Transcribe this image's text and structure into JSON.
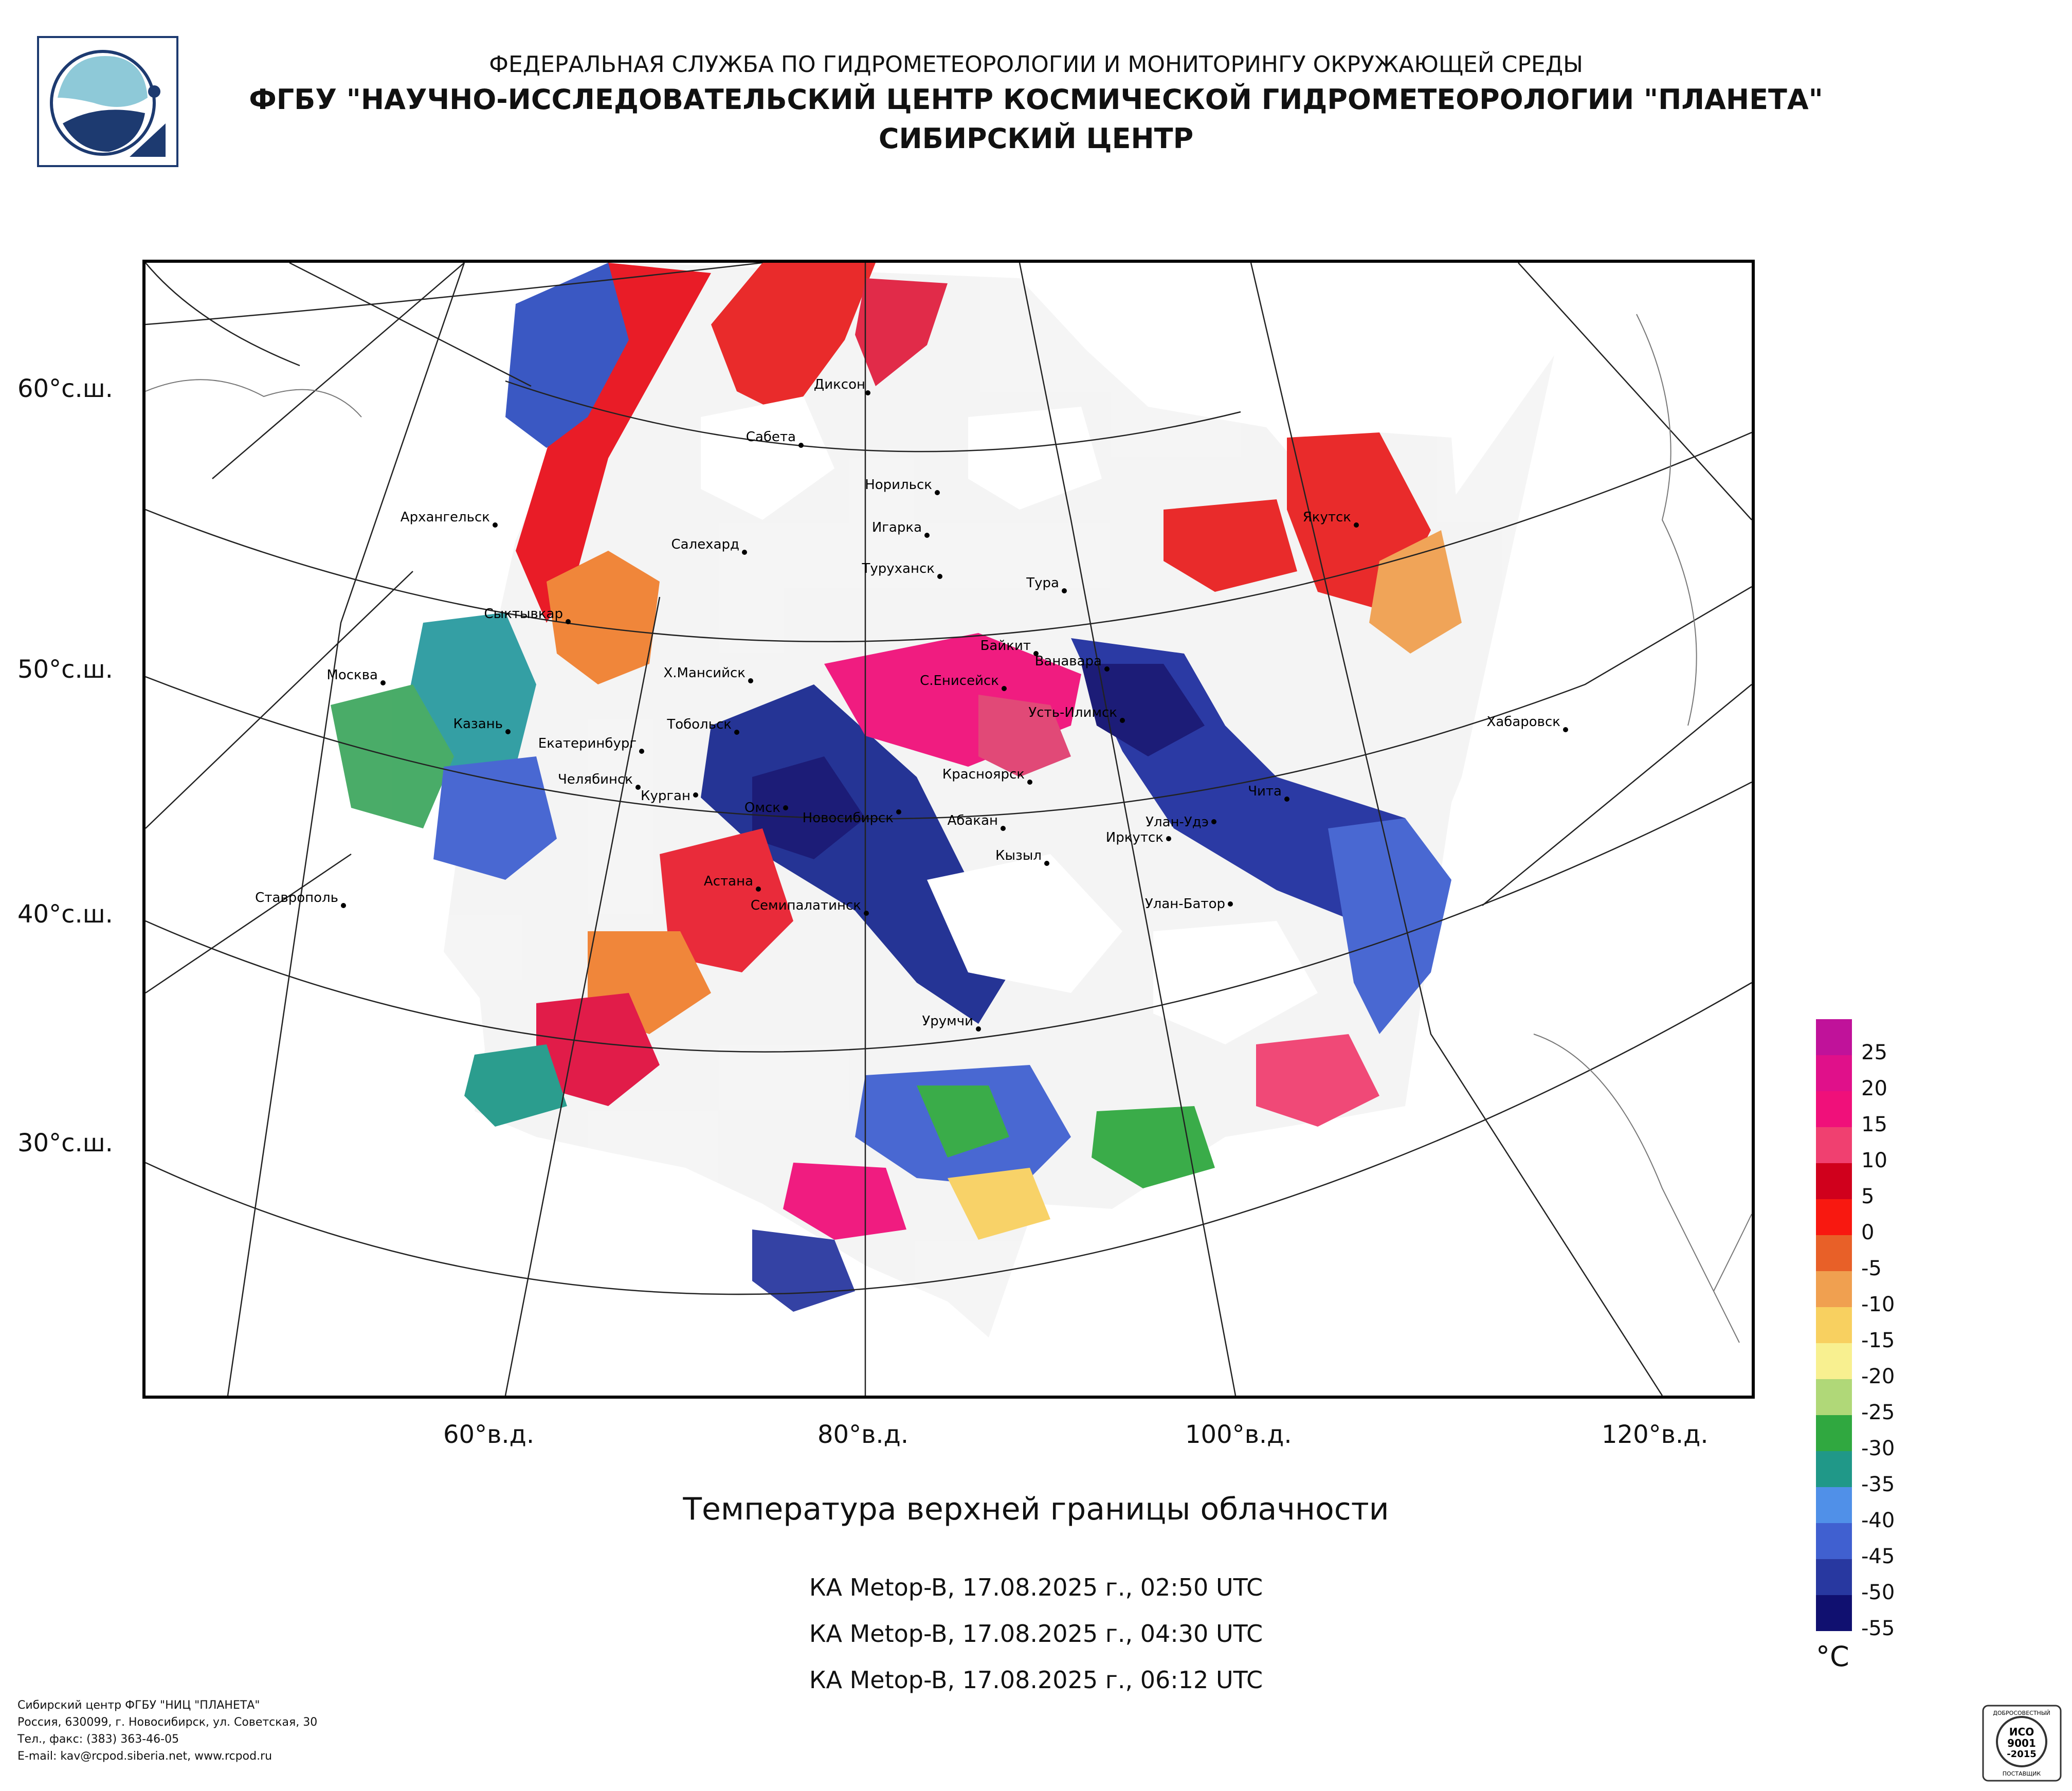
{
  "header": {
    "line1": "ФЕДЕРАЛЬНАЯ СЛУЖБА ПО ГИДРОМЕТЕОРОЛОГИИ И МОНИТОРИНГУ ОКРУЖАЮЩЕЙ СРЕДЫ",
    "line2": "ФГБУ \"НАУЧНО-ИССЛЕДОВАТЕЛЬСКИЙ ЦЕНТР КОСМИЧЕСКОЙ ГИДРОМЕТЕОРОЛОГИИ \"ПЛАНЕТА\"",
    "line3": "СИБИРСКИЙ ЦЕНТР"
  },
  "map": {
    "lat_labels": [
      "60°с.ш.",
      "50°с.ш.",
      "40°с.ш.",
      "30°с.ш."
    ],
    "lon_labels": [
      "60°в.д.",
      "80°в.д.",
      "100°в.д.",
      "120°в.д."
    ],
    "cities": [
      "Диксон",
      "Сабета",
      "Норильск",
      "Игарка",
      "Архангельск",
      "Салехард",
      "Туруханск",
      "Тура",
      "Якутск",
      "Сыктывкар",
      "Байкит",
      "Ванавара",
      "Москва",
      "Х.Мансийск",
      "С.Енисейск",
      "Усть-Илимск",
      "Хабаровск",
      "Казань",
      "Тобольск",
      "Екатеринбург",
      "Челябинск",
      "Курган",
      "Красноярск",
      "Чита",
      "Омск",
      "Новосибирск",
      "Абакан",
      "Улан-Удэ",
      "Иркутск",
      "Кызыл",
      "Ставрополь",
      "Астана",
      "Семипалатинск",
      "Улан-Батор",
      "Урумчи"
    ]
  },
  "title": "Температура верхней границы облачности",
  "passes": [
    "КА Metop-B, 17.08.2025 г., 02:50 UTC",
    "КА Metop-B, 17.08.2025 г., 04:30 UTC",
    "КА Metop-B, 17.08.2025 г., 06:12 UTC"
  ],
  "legend": {
    "unit": "°C",
    "labels": [
      "25",
      "20",
      "15",
      "10",
      "5",
      "0",
      "-5",
      "-10",
      "-15",
      "-20",
      "-25",
      "-30",
      "-35",
      "-40",
      "-45",
      "-50",
      "-55"
    ],
    "colors": [
      "#c0129a",
      "#e0108a",
      "#f0107a",
      "#f04070",
      "#d0001c",
      "#f81810",
      "#e86028",
      "#f0a050",
      "#f8d060",
      "#f8f090",
      "#b0d878",
      "#30a840",
      "#209888",
      "#5090e8",
      "#4060d0",
      "#2838a0",
      "#101070"
    ]
  },
  "footer": [
    "Сибирский центр ФГБУ \"НИЦ \"ПЛАНЕТА\"",
    "Россия, 630099, г. Новосибирск, ул. Советская, 30",
    "Тел., факс: (383) 363-46-05",
    "E-mail: kav@rcpod.siberia.net, www.rcpod.ru"
  ],
  "certificate": {
    "line1": "ДОБРОСОВЕСТНЫЙ",
    "line2": "ИСО",
    "line3": "9001",
    "line4": "-2015",
    "line5": "ПОСТАВЩИК"
  }
}
